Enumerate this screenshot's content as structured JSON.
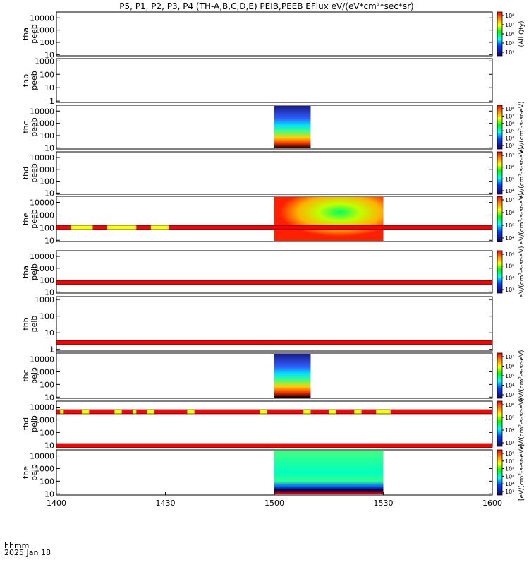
{
  "title": "P5, P1, P2, P3, P4 (TH-A,B,C,D,E) PEIB,PEEB EFlux eV/(eV*cm²*sec*sr)",
  "xaxis": {
    "label_line1": "hhmm",
    "label_line2": "2025 Jan 18",
    "ticks": [
      "1400",
      "1430",
      "1500",
      "1530",
      "1600"
    ],
    "range_minutes": [
      0,
      120
    ]
  },
  "colors": {
    "flag_red": "#ff0000",
    "flag_yellow": "#ffff00",
    "fill_blank": "#ffffff"
  },
  "chart_data": {
    "type": "heatmap",
    "x_units": "time (hhmm)",
    "y_units": "Energy (eV), log scale",
    "z_units": "eV/(eV*cm²*sec*sr)",
    "panels": [
      {
        "id": "tha-peeb",
        "ylabel": [
          "tha",
          "peeb"
        ],
        "yticks": [
          "10000",
          "1000",
          "100",
          "10"
        ],
        "ylim": [
          8,
          30000
        ],
        "colorbar": {
          "ticks": [
            "10⁸",
            "10⁷",
            "10⁶",
            "10⁵",
            "10⁴"
          ],
          "zlim_exp": [
            3,
            8
          ]
        },
        "spectrogram": [],
        "colorbar_label": "(All Qty)"
      },
      {
        "id": "thb-peeb",
        "ylabel": [
          "thb",
          "peeb"
        ],
        "yticks": [
          "1000",
          "100",
          "10",
          "1"
        ],
        "ylim": [
          0.8,
          1500
        ],
        "colorbar": null,
        "spectrogram": [],
        "colorbar_label": "eV/(cm²-s-sr-eV)"
      },
      {
        "id": "thc-peeb",
        "ylabel": [
          "thc",
          "peeb"
        ],
        "yticks": [
          "10000",
          "1000",
          "100",
          "10"
        ],
        "ylim": [
          8,
          30000
        ],
        "colorbar": {
          "ticks": [
            "10⁸",
            "10⁷",
            "10⁶",
            "10⁵",
            "10⁴",
            "10³"
          ],
          "zlim_exp": [
            2.5,
            8
          ]
        },
        "spectrogram": [
          {
            "t_start": "1500",
            "t_end": "1510",
            "spectrum": "broad"
          }
        ],
        "colorbar_label": "eV/(cm²-s-sr-eV)"
      },
      {
        "id": "thd-peeb",
        "ylabel": [
          "thd",
          "peeb"
        ],
        "yticks": [
          "10000",
          "1000",
          "100",
          "10"
        ],
        "ylim": [
          8,
          30000
        ],
        "colorbar": {
          "ticks": [
            "10⁷",
            "10⁶",
            "10⁵",
            "10⁴"
          ],
          "zlim_exp": [
            3.5,
            7.5
          ]
        },
        "spectrogram": [],
        "colorbar_label": "eV/(cm²-s-sr-eV)"
      },
      {
        "id": "the-peeb",
        "ylabel": [
          "the",
          "peeb"
        ],
        "yticks": [
          "10000",
          "1000",
          "100",
          "10"
        ],
        "ylim": [
          8,
          30000
        ],
        "colorbar": {
          "ticks": [
            "10⁷",
            "10⁶",
            "10⁵",
            "10⁴"
          ],
          "zlim_exp": [
            3.5,
            7.5
          ]
        },
        "spectrogram": [
          {
            "t_start": "1500",
            "t_end": "1530",
            "spectrum": "hot"
          }
        ],
        "colorbar_label": "eV/(cm²-s-sr-eV)"
      },
      {
        "id": "tha-peib",
        "ylabel": [
          "tha",
          "peib"
        ],
        "yticks": [
          "10000",
          "1000",
          "100",
          "10"
        ],
        "ylim": [
          8,
          30000
        ],
        "colorbar": {
          "ticks": [
            "10⁶",
            "10⁵",
            "10⁴",
            "10³"
          ],
          "zlim_exp": [
            2.5,
            6.5
          ]
        },
        "spectrogram": [],
        "colorbar_label": "eV/(cm²-s-sr-eV)"
      },
      {
        "id": "thb-peib",
        "ylabel": [
          "thb",
          "peib"
        ],
        "yticks": [
          "1000",
          "100",
          "10",
          "1"
        ],
        "ylim": [
          0.8,
          1500
        ],
        "colorbar": null,
        "spectrogram": [],
        "colorbar_label": "eV/(cm²-s-sr-eV)"
      },
      {
        "id": "thc-peib",
        "ylabel": [
          "thc",
          "peib"
        ],
        "yticks": [
          "10000",
          "1000",
          "100",
          "10"
        ],
        "ylim": [
          8,
          30000
        ],
        "colorbar": {
          "ticks": [
            "10⁷",
            "10⁶",
            "10⁵",
            "10⁴",
            "10³"
          ],
          "zlim_exp": [
            2.5,
            7.5
          ]
        },
        "spectrogram": [
          {
            "t_start": "1500",
            "t_end": "1510",
            "spectrum": "broad"
          }
        ],
        "colorbar_label": "eV/(cm²-s-sr-eV)"
      },
      {
        "id": "thd-peib",
        "ylabel": [
          "thd",
          "peib"
        ],
        "yticks": [
          "10000",
          "1000",
          "100",
          "10"
        ],
        "ylim": [
          8,
          30000
        ],
        "colorbar": {
          "ticks": [
            "10⁶",
            "10⁵",
            "10⁴",
            "10³"
          ],
          "zlim_exp": [
            2.5,
            6.5
          ]
        },
        "spectrogram": [],
        "colorbar_label": "eV/(cm²-s-sr-eV)"
      },
      {
        "id": "the-peib",
        "ylabel": [
          "the",
          "peib"
        ],
        "yticks": [
          "10000",
          "1000",
          "100",
          "10"
        ],
        "ylim": [
          8,
          30000
        ],
        "colorbar": {
          "ticks": [
            "10⁸",
            "10⁷",
            "10⁶",
            "10⁵",
            "10⁴",
            "10³"
          ],
          "zlim_exp": [
            2.5,
            8
          ]
        },
        "spectrogram": [
          {
            "t_start": "1500",
            "t_end": "1530",
            "spectrum": "warm"
          }
        ],
        "colorbar_label": "[eV/(cm²-s-sr-eV)]"
      }
    ],
    "flag_bars": [
      {
        "after_panel": "the-peeb",
        "yellow_segments_hhmm": [
          [
            "1404",
            "1410"
          ],
          [
            "1414",
            "1422"
          ],
          [
            "1426",
            "1431"
          ]
        ]
      },
      {
        "after_panel": "tha-peib",
        "yellow_segments_hhmm": []
      },
      {
        "after_panel": "thb-peib",
        "yellow_segments_hhmm": []
      },
      {
        "after_panel": "thc-peib",
        "yellow_segments_hhmm": [
          [
            "1401",
            "1402"
          ],
          [
            "1407",
            "1409"
          ],
          [
            "1416",
            "1418"
          ],
          [
            "1421",
            "1422"
          ],
          [
            "1425",
            "1427"
          ],
          [
            "1436",
            "1438"
          ],
          [
            "1456",
            "1458"
          ],
          [
            "1508",
            "1510"
          ],
          [
            "1515",
            "1517"
          ],
          [
            "1522",
            "1524"
          ],
          [
            "1528",
            "1532"
          ]
        ]
      },
      {
        "after_panel": "thd-peib",
        "yellow_segments_hhmm": []
      }
    ]
  }
}
